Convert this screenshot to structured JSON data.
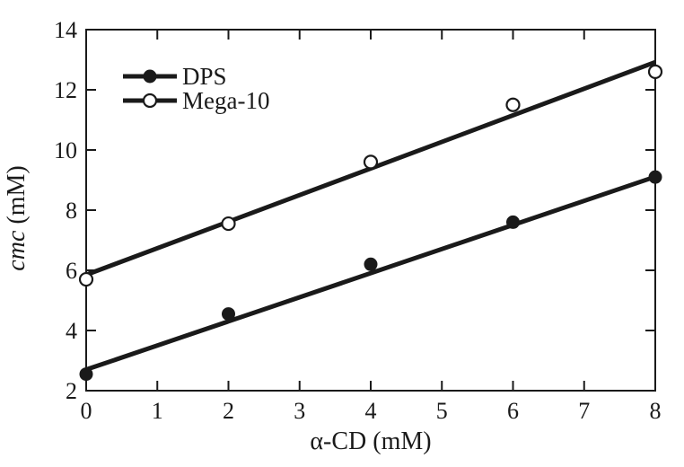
{
  "figure": {
    "background": "#ffffff",
    "ink_color": "#1a1a1a"
  },
  "chart_data": {
    "type": "scatter",
    "title": "",
    "xlabel": "α-CD (mM)",
    "ylabel": "cmc (mM)",
    "ylabel_parts": [
      {
        "text": "cmc",
        "italic": true
      },
      {
        "text": " (mM)",
        "italic": false
      }
    ],
    "xlim": [
      0,
      8
    ],
    "ylim": [
      2,
      14
    ],
    "xticks": [
      0,
      1,
      2,
      3,
      4,
      5,
      6,
      7,
      8
    ],
    "yticks": [
      2,
      4,
      6,
      8,
      10,
      12,
      14
    ],
    "grid": false,
    "legend_position": "upper-left",
    "x": [
      0,
      2,
      4,
      6,
      8
    ],
    "series": [
      {
        "name": "DPS",
        "marker": "filled-circle",
        "values": [
          2.55,
          4.55,
          6.2,
          7.6,
          9.1
        ],
        "fit_line": {
          "x0": 0,
          "y0": 2.7,
          "x1": 8,
          "y1": 9.11
        }
      },
      {
        "name": "Mega-10",
        "marker": "open-circle",
        "values": [
          5.7,
          7.55,
          9.6,
          11.5,
          12.6
        ],
        "fit_line": {
          "x0": 0,
          "y0": 5.85,
          "x1": 8,
          "y1": 12.92
        }
      }
    ]
  }
}
